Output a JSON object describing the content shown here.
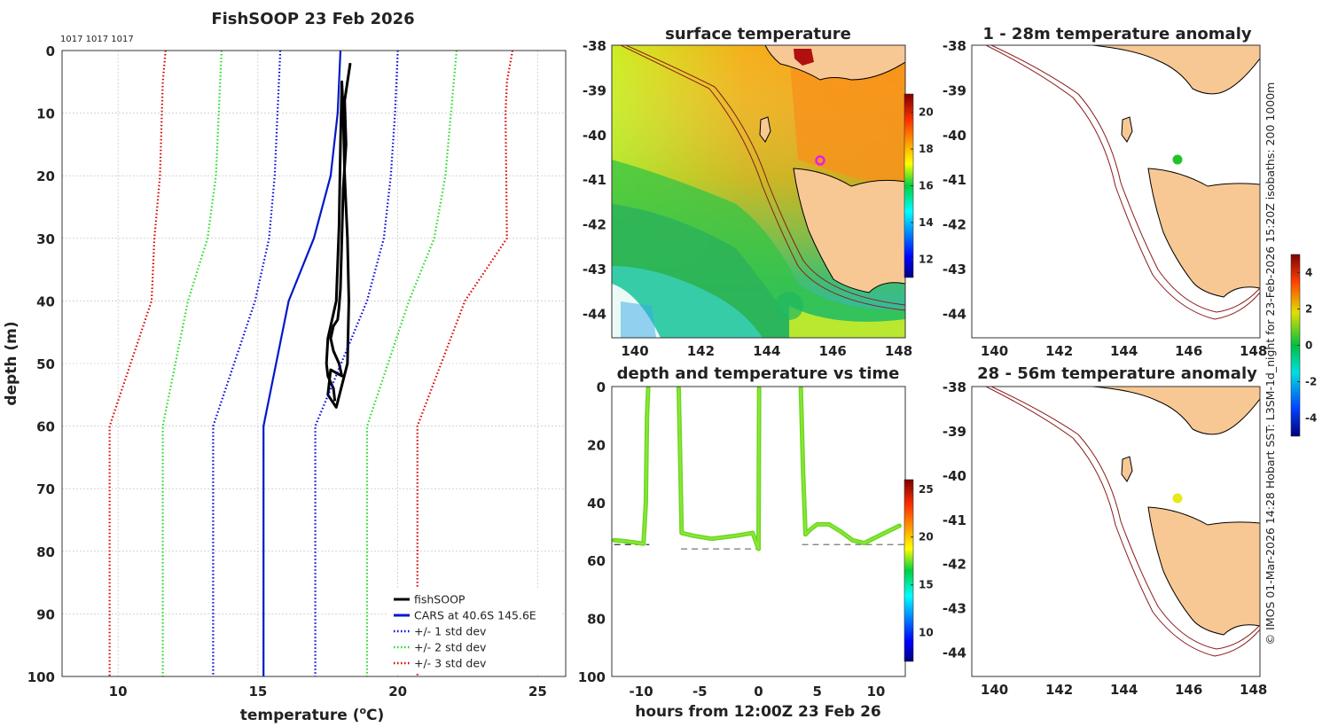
{
  "chart_data": [
    {
      "type": "line",
      "title": "FishSOOP 23 Feb 2026",
      "annotation": "1017 1017 1017",
      "xlabel_main": "temperature (",
      "xlabel_sup": "o",
      "xlabel_end": "C)",
      "ylabel": "depth (m)",
      "xlim": [
        8,
        26
      ],
      "ylim": [
        0,
        100
      ],
      "xticks": [
        10,
        15,
        20,
        25
      ],
      "yticks": [
        0,
        10,
        20,
        30,
        40,
        50,
        60,
        70,
        80,
        90,
        100
      ],
      "legend": [
        "fishSOOP",
        "CARS at 40.6S 145.6E",
        "+/- 1 std dev",
        "+/- 2 std dev",
        "+/- 3 std dev"
      ],
      "series": [
        {
          "name": "fishSOOP",
          "color": "#000000",
          "style": "solid",
          "x": [
            18.3,
            18.1,
            18.15,
            18.05,
            18.0,
            17.95,
            17.9,
            17.85,
            17.7,
            17.6,
            17.7,
            17.9,
            18.0,
            17.6,
            17.5,
            17.8,
            18.2,
            18.25,
            18.2,
            18.1,
            18.05,
            18.0,
            17.95,
            17.9,
            17.8,
            17.5,
            17.45,
            17.5,
            17.7,
            17.75
          ],
          "depth": [
            2,
            8,
            15,
            22,
            30,
            38,
            41,
            43,
            44,
            46,
            48,
            50,
            52,
            51,
            55,
            57,
            50,
            40,
            30,
            20,
            10,
            5,
            15,
            28,
            40,
            46,
            50,
            52,
            54,
            56
          ]
        },
        {
          "name": "CARS",
          "color": "#0018cc",
          "style": "solid",
          "x": [
            17.95,
            17.85,
            17.6,
            17.0,
            16.1,
            15.2,
            15.2
          ],
          "depth": [
            0,
            10,
            20,
            30,
            40,
            60,
            100
          ]
        },
        {
          "name": "-1 std",
          "color": "#0000dd",
          "style": "dotted",
          "x": [
            15.8,
            15.7,
            15.6,
            15.4,
            14.9,
            13.4,
            13.4
          ],
          "depth": [
            0,
            10,
            20,
            30,
            40,
            60,
            100
          ]
        },
        {
          "name": "+1 std",
          "color": "#0000dd",
          "style": "dotted",
          "x": [
            20.0,
            19.9,
            19.75,
            19.5,
            18.9,
            17.05,
            17.05
          ],
          "depth": [
            0,
            10,
            20,
            30,
            40,
            60,
            100
          ]
        },
        {
          "name": "-2 std",
          "color": "#22dd22",
          "style": "dotted",
          "x": [
            13.7,
            13.6,
            13.5,
            13.2,
            12.5,
            11.6,
            11.6
          ],
          "depth": [
            0,
            10,
            20,
            30,
            40,
            60,
            100
          ]
        },
        {
          "name": "+2 std",
          "color": "#22dd22",
          "style": "dotted",
          "x": [
            22.1,
            21.9,
            21.7,
            21.3,
            20.4,
            18.9,
            18.9
          ],
          "depth": [
            0,
            10,
            20,
            30,
            40,
            60,
            100
          ]
        },
        {
          "name": "-3 std",
          "color": "#dd0000",
          "style": "dotted",
          "x": [
            11.7,
            11.6,
            11.5,
            11.3,
            11.2,
            9.7,
            9.7
          ],
          "depth": [
            0,
            5,
            20,
            30,
            40,
            60,
            100
          ]
        },
        {
          "name": "+3 std",
          "color": "#dd0000",
          "style": "dotted",
          "x": [
            24.1,
            23.9,
            23.85,
            23.9,
            22.4,
            20.7,
            20.7
          ],
          "depth": [
            0,
            5,
            10,
            30,
            40,
            60,
            100
          ]
        }
      ]
    },
    {
      "type": "heatmap",
      "title": "surface temperature",
      "xticks": [
        140,
        142,
        144,
        146,
        148
      ],
      "yticks": [
        -38,
        -39,
        -40,
        -41,
        -42,
        -43,
        -44
      ],
      "colorbar": {
        "ticks": [
          12,
          14,
          16,
          18,
          20
        ],
        "range": [
          11,
          21
        ]
      }
    },
    {
      "type": "scatter",
      "title": "depth and temperature vs time",
      "xlabel": "hours from 12:00Z 23 Feb 26",
      "xlim": [
        -12.5,
        12.5
      ],
      "ylim": [
        0,
        100
      ],
      "xticks": [
        -10,
        -5,
        0,
        5,
        10
      ],
      "yticks": [
        0,
        20,
        40,
        60,
        80,
        100
      ],
      "colorbar": {
        "ticks": [
          10,
          15,
          20,
          25
        ],
        "range": [
          7,
          26
        ]
      },
      "segments": [
        {
          "t": [
            -12.3,
            -11.5,
            -10.5,
            -9.8,
            -9.6,
            -9.5,
            -9.4
          ],
          "depth": [
            53,
            53.3,
            53.8,
            54.2,
            40,
            10,
            0.5
          ]
        },
        {
          "t": [
            -6.8,
            -6.7,
            -6.55,
            -5.5,
            -4,
            -2,
            -0.5,
            0,
            0.05
          ],
          "depth": [
            0.5,
            20,
            50.5,
            51.5,
            52.5,
            51.5,
            50.5,
            56,
            0.5
          ]
        },
        {
          "t": [
            3.6,
            3.8,
            4.0,
            4.5,
            5,
            6,
            7,
            8,
            9,
            10,
            11,
            12
          ],
          "depth": [
            0.5,
            30,
            51,
            49,
            47.5,
            47.5,
            50,
            53,
            54,
            52,
            50,
            48
          ]
        }
      ],
      "bottom_lines": [
        {
          "t": [
            -12.3,
            -9.3
          ],
          "depth": 54.5
        },
        {
          "t": [
            -6.6,
            0.2
          ],
          "depth": 56
        },
        {
          "t": [
            3.7,
            12.5
          ],
          "depth": 54.5
        }
      ]
    },
    {
      "type": "heatmap",
      "title": "1 - 28m temperature anomaly",
      "xticks": [
        140,
        142,
        144,
        146,
        148
      ],
      "yticks": [
        -38,
        -39,
        -40,
        -41,
        -42,
        -43,
        -44
      ],
      "marker": {
        "lon": 145.6,
        "lat": -40.6,
        "color": "#22c32a"
      }
    },
    {
      "type": "heatmap",
      "title": "28 - 56m temperature anomaly",
      "xticks": [
        140,
        142,
        144,
        146,
        148
      ],
      "yticks": [
        -38,
        -39,
        -40,
        -41,
        -42,
        -43,
        -44
      ],
      "marker": {
        "lon": 145.6,
        "lat": -40.6,
        "color": "#e8e81a"
      },
      "colorbar": {
        "ticks": [
          -4,
          -2,
          0,
          2,
          4
        ],
        "range": [
          -5,
          5
        ]
      }
    }
  ],
  "footer": "© IMOS 01-Mar-2026 14:28 Hobart SST: L3SM-1d_night for 23-Feb-2026 15:20Z isobaths: 200  1000m"
}
